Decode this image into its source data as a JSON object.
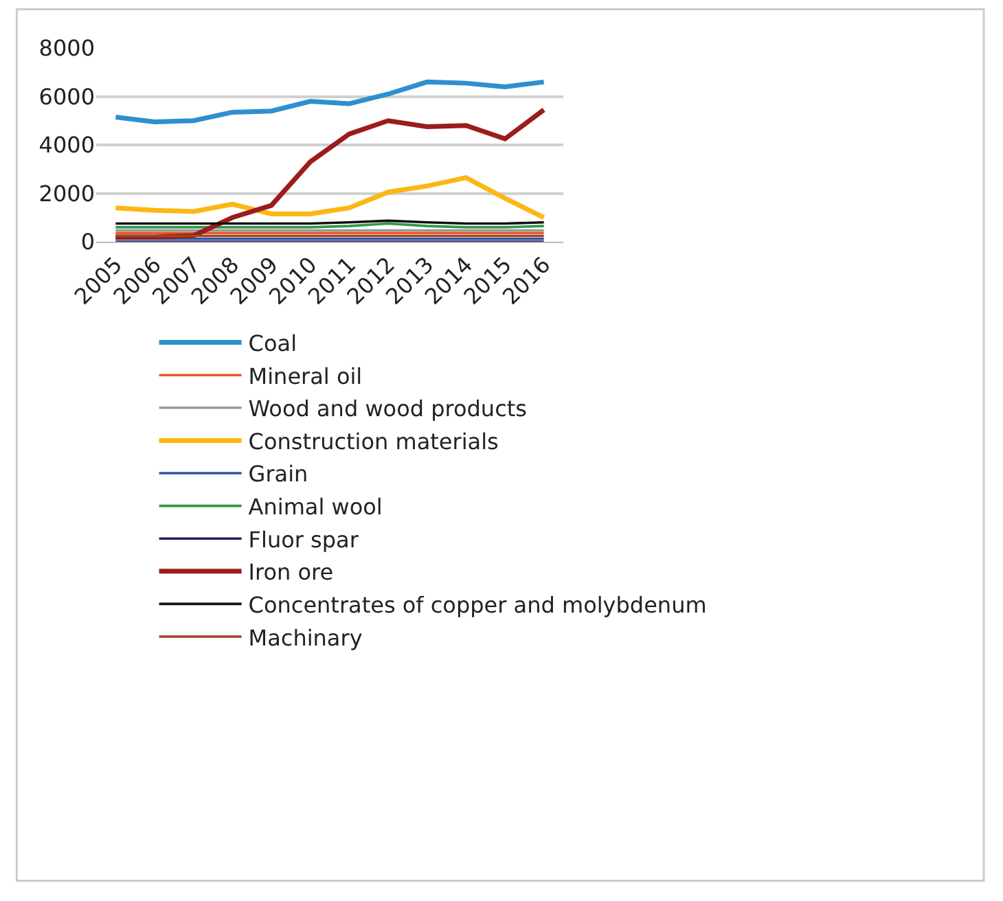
{
  "chart_data": {
    "type": "line",
    "categories": [
      "2005",
      "2006",
      "2007",
      "2008",
      "2009",
      "2010",
      "2011",
      "2012",
      "2013",
      "2014",
      "2015",
      "2016"
    ],
    "ylim": [
      0,
      8000
    ],
    "yticks": [
      0,
      2000,
      4000,
      6000,
      8000
    ],
    "grid": "y",
    "legend": "bottom",
    "line_style": "solid",
    "marker": "none",
    "series": [
      {
        "name": "Coal",
        "color": "#2e8fd0",
        "values": [
          5150,
          4950,
          5000,
          5350,
          5400,
          5800,
          5700,
          6100,
          6600,
          6550,
          6400,
          6600
        ]
      },
      {
        "name": "Mineral oil",
        "color": "#e8582a",
        "values": [
          360,
          360,
          360,
          360,
          360,
          360,
          360,
          360,
          360,
          360,
          360,
          360
        ]
      },
      {
        "name": "Wood and wood products",
        "color": "#999999",
        "values": [
          470,
          470,
          470,
          470,
          470,
          470,
          470,
          470,
          470,
          470,
          470,
          470
        ]
      },
      {
        "name": "Construction materials",
        "color": "#fbb714",
        "values": [
          1400,
          1300,
          1250,
          1550,
          1150,
          1150,
          1400,
          2050,
          2300,
          2650,
          1800,
          1000
        ]
      },
      {
        "name": "Grain",
        "color": "#2f55a4",
        "values": [
          120,
          120,
          120,
          120,
          120,
          120,
          120,
          120,
          120,
          120,
          120,
          120
        ]
      },
      {
        "name": "Animal wool",
        "color": "#2e9a47",
        "values": [
          600,
          600,
          600,
          600,
          600,
          600,
          650,
          750,
          650,
          600,
          600,
          650
        ]
      },
      {
        "name": "Fluor spar",
        "color": "#1f2368",
        "values": [
          0,
          0,
          0,
          0,
          0,
          0,
          0,
          0,
          0,
          0,
          0,
          0
        ]
      },
      {
        "name": "Iron ore",
        "color": "#9c1c1c",
        "values": [
          200,
          200,
          250,
          1000,
          1500,
          3300,
          4450,
          5000,
          4750,
          4800,
          4250,
          5450
        ]
      },
      {
        "name": "Concentrates of copper and molybdenum",
        "color": "#111111",
        "values": [
          750,
          750,
          750,
          750,
          750,
          750,
          800,
          870,
          800,
          750,
          750,
          800
        ]
      },
      {
        "name": "Machinary",
        "color": "#a0451e",
        "values": [
          240,
          240,
          240,
          240,
          240,
          240,
          240,
          240,
          240,
          240,
          240,
          240
        ]
      }
    ]
  }
}
